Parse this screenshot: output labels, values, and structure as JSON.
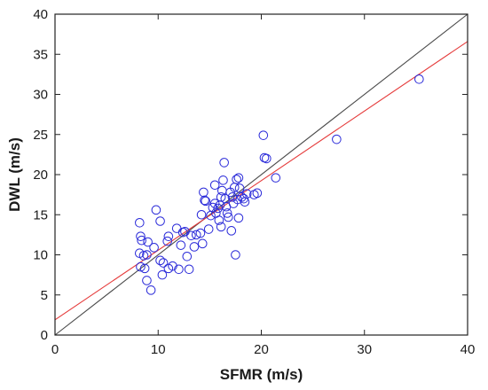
{
  "chart_data": {
    "type": "scatter",
    "xlabel": "SFMR (m/s)",
    "ylabel": "DWL (m/s)",
    "xlim": [
      0,
      40
    ],
    "ylim": [
      0,
      40
    ],
    "x_ticks": [
      "0",
      "10",
      "20",
      "30",
      "40"
    ],
    "y_ticks": [
      "0",
      "5",
      "10",
      "15",
      "20",
      "25",
      "30",
      "35",
      "40"
    ],
    "grid": false,
    "legend": "none",
    "series": [
      {
        "marker": "open-circle",
        "color": "#2b2bd9",
        "points": [
          [
            8.2,
            14.0
          ],
          [
            8.3,
            12.3
          ],
          [
            8.4,
            11.8
          ],
          [
            8.2,
            10.2
          ],
          [
            8.6,
            9.9
          ],
          [
            8.9,
            10.0
          ],
          [
            8.7,
            8.3
          ],
          [
            8.3,
            8.5
          ],
          [
            9.0,
            11.6
          ],
          [
            8.9,
            6.8
          ],
          [
            9.3,
            5.6
          ],
          [
            9.6,
            10.9
          ],
          [
            9.8,
            15.6
          ],
          [
            10.2,
            14.2
          ],
          [
            10.2,
            9.3
          ],
          [
            10.5,
            9.0
          ],
          [
            10.4,
            7.5
          ],
          [
            10.9,
            11.7
          ],
          [
            11.0,
            12.3
          ],
          [
            11.0,
            8.3
          ],
          [
            11.4,
            8.6
          ],
          [
            11.8,
            13.3
          ],
          [
            12.0,
            8.2
          ],
          [
            12.2,
            11.2
          ],
          [
            12.4,
            12.8
          ],
          [
            12.6,
            12.9
          ],
          [
            12.8,
            9.8
          ],
          [
            13.0,
            8.2
          ],
          [
            13.2,
            12.4
          ],
          [
            13.5,
            11.0
          ],
          [
            13.7,
            12.5
          ],
          [
            14.1,
            12.7
          ],
          [
            14.3,
            11.4
          ],
          [
            14.2,
            15.0
          ],
          [
            14.5,
            16.8
          ],
          [
            14.4,
            17.8
          ],
          [
            14.6,
            16.7
          ],
          [
            14.9,
            13.2
          ],
          [
            15.1,
            14.9
          ],
          [
            15.3,
            15.9
          ],
          [
            15.5,
            18.7
          ],
          [
            15.6,
            15.2
          ],
          [
            15.5,
            16.4
          ],
          [
            15.8,
            15.8
          ],
          [
            15.9,
            14.3
          ],
          [
            16.0,
            16.2
          ],
          [
            16.1,
            17.2
          ],
          [
            16.2,
            18.0
          ],
          [
            16.1,
            13.5
          ],
          [
            16.4,
            21.5
          ],
          [
            16.3,
            19.3
          ],
          [
            16.5,
            17.0
          ],
          [
            16.6,
            16.0
          ],
          [
            16.7,
            15.2
          ],
          [
            16.8,
            14.7
          ],
          [
            17.0,
            17.8
          ],
          [
            17.1,
            13.0
          ],
          [
            17.2,
            17.2
          ],
          [
            17.3,
            16.4
          ],
          [
            17.4,
            18.4
          ],
          [
            17.5,
            10.0
          ],
          [
            17.6,
            19.4
          ],
          [
            17.8,
            19.6
          ],
          [
            17.7,
            16.9
          ],
          [
            17.9,
            18.3
          ],
          [
            17.8,
            14.6
          ],
          [
            18.1,
            17.2
          ],
          [
            18.3,
            17.0
          ],
          [
            18.4,
            16.6
          ],
          [
            18.6,
            17.6
          ],
          [
            19.3,
            17.5
          ],
          [
            19.6,
            17.7
          ],
          [
            20.2,
            24.9
          ],
          [
            20.3,
            22.1
          ],
          [
            20.5,
            22.0
          ],
          [
            21.4,
            19.6
          ],
          [
            27.3,
            24.4
          ],
          [
            35.3,
            31.9
          ]
        ]
      }
    ],
    "lines": [
      {
        "kind": "identity",
        "color": "#4a4a4a",
        "x": [
          0,
          40
        ],
        "y": [
          0,
          40
        ]
      },
      {
        "kind": "regression-fit",
        "color": "#e53a3a",
        "x": [
          0,
          40
        ],
        "y": [
          1.9,
          36.6
        ]
      }
    ]
  }
}
